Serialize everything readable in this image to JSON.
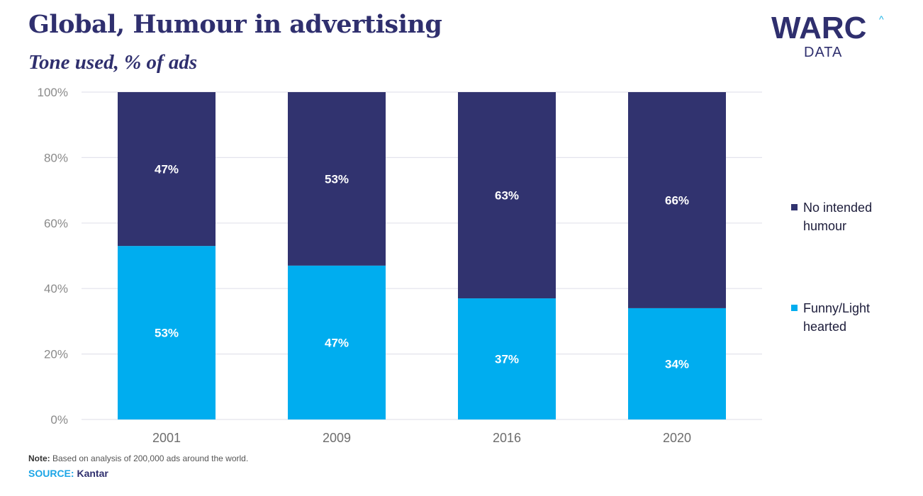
{
  "header": {
    "title": "Global, Humour in advertising",
    "subtitle": "Tone used, % of ads"
  },
  "logo": {
    "main": "WARC",
    "sub": "DATA",
    "caret": "^"
  },
  "colors": {
    "dark_series": "#31336f",
    "light_series": "#00adef",
    "grid": "#e3e3ec",
    "axis_text": "#8a8a8a"
  },
  "chart_data": {
    "type": "bar",
    "stacked": true,
    "categories": [
      "2001",
      "2009",
      "2016",
      "2020"
    ],
    "series": [
      {
        "name": "Funny/Light hearted",
        "color": "#00adef",
        "values": [
          53,
          47,
          37,
          34
        ],
        "labels": [
          "53%",
          "47%",
          "37%",
          "34%"
        ]
      },
      {
        "name": "No intended humour",
        "color": "#31336f",
        "values": [
          47,
          53,
          63,
          66
        ],
        "labels": [
          "47%",
          "53%",
          "63%",
          "66%"
        ]
      }
    ],
    "ylim": [
      0,
      100
    ],
    "yticks": [
      0,
      20,
      40,
      60,
      80,
      100
    ],
    "ytick_labels": [
      "0%",
      "20%",
      "40%",
      "60%",
      "80%",
      "100%"
    ],
    "grid": true,
    "legend_position": "right"
  },
  "legend": {
    "items": [
      {
        "lines": [
          "No intended",
          "humour"
        ],
        "color": "#31336f"
      },
      {
        "lines": [
          "Funny/Light",
          "hearted"
        ],
        "color": "#00adef"
      }
    ]
  },
  "footer": {
    "note_label": "Note:",
    "note_text": " Based on analysis of 200,000 ads around the world.",
    "source_label": "SOURCE:",
    "source_value": " Kantar"
  }
}
